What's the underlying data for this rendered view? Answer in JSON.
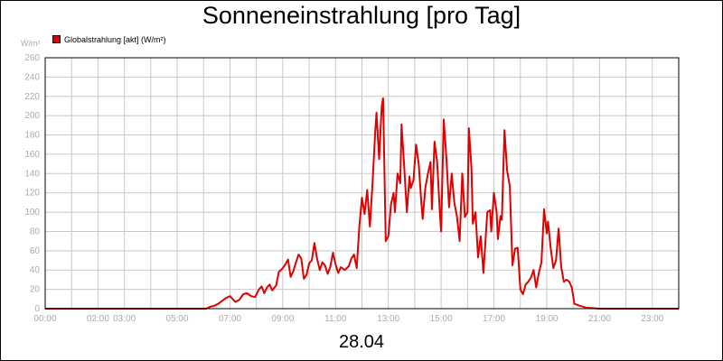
{
  "header": {
    "title": "Sonneneinstrahlung [pro Tag]",
    "unit": "W/m²"
  },
  "legend": {
    "label": "Globalstrahlung [akt] (W/m²)",
    "color": "#e00000"
  },
  "footer": {
    "date": "28.04"
  },
  "chart_data": {
    "type": "line",
    "title": "Sonneneinstrahlung [pro Tag]",
    "ylabel": "W/m²",
    "ylim": [
      0,
      260
    ],
    "xlim": [
      0,
      24
    ],
    "grid": true,
    "legend_position": "top-left",
    "y_ticks": [
      "0",
      "20",
      "40",
      "60",
      "80",
      "100",
      "120",
      "140",
      "160",
      "180",
      "200",
      "220",
      "240",
      "260"
    ],
    "x_ticks": [
      {
        "t": 0,
        "label": "00:00"
      },
      {
        "t": 2,
        "label": "02:00"
      },
      {
        "t": 3,
        "label": "03:00"
      },
      {
        "t": 5,
        "label": "05:00"
      },
      {
        "t": 7,
        "label": "07:00"
      },
      {
        "t": 9,
        "label": "09:00"
      },
      {
        "t": 11,
        "label": "11:00"
      },
      {
        "t": 13,
        "label": "13:00"
      },
      {
        "t": 15,
        "label": "15:00"
      },
      {
        "t": 17,
        "label": "17:00"
      },
      {
        "t": 19,
        "label": "19:00"
      },
      {
        "t": 21,
        "label": "21:00"
      },
      {
        "t": 23,
        "label": "23:00"
      }
    ],
    "series": [
      {
        "name": "Globalstrahlung [akt] (W/m²)",
        "color": "#e00000",
        "points": [
          [
            0.0,
            0
          ],
          [
            6.1,
            0
          ],
          [
            6.25,
            2
          ],
          [
            6.4,
            3
          ],
          [
            6.55,
            5
          ],
          [
            6.7,
            8
          ],
          [
            6.85,
            11
          ],
          [
            7.0,
            13
          ],
          [
            7.1,
            10
          ],
          [
            7.2,
            7
          ],
          [
            7.35,
            9
          ],
          [
            7.5,
            15
          ],
          [
            7.65,
            16
          ],
          [
            7.8,
            13
          ],
          [
            7.95,
            12
          ],
          [
            8.1,
            20
          ],
          [
            8.2,
            23
          ],
          [
            8.3,
            16
          ],
          [
            8.4,
            22
          ],
          [
            8.5,
            25
          ],
          [
            8.6,
            19
          ],
          [
            8.75,
            24
          ],
          [
            8.85,
            38
          ],
          [
            9.0,
            42
          ],
          [
            9.1,
            46
          ],
          [
            9.2,
            51
          ],
          [
            9.3,
            33
          ],
          [
            9.4,
            39
          ],
          [
            9.5,
            48
          ],
          [
            9.6,
            56
          ],
          [
            9.7,
            52
          ],
          [
            9.8,
            31
          ],
          [
            9.9,
            35
          ],
          [
            10.0,
            47
          ],
          [
            10.1,
            50
          ],
          [
            10.2,
            68
          ],
          [
            10.3,
            52
          ],
          [
            10.4,
            40
          ],
          [
            10.5,
            48
          ],
          [
            10.6,
            45
          ],
          [
            10.7,
            36
          ],
          [
            10.8,
            43
          ],
          [
            10.9,
            58
          ],
          [
            11.0,
            46
          ],
          [
            11.1,
            37
          ],
          [
            11.2,
            43
          ],
          [
            11.35,
            40
          ],
          [
            11.5,
            44
          ],
          [
            11.6,
            52
          ],
          [
            11.7,
            56
          ],
          [
            11.8,
            42
          ],
          [
            11.9,
            85
          ],
          [
            12.0,
            115
          ],
          [
            12.1,
            98
          ],
          [
            12.2,
            123
          ],
          [
            12.3,
            85
          ],
          [
            12.4,
            130
          ],
          [
            12.5,
            182
          ],
          [
            12.55,
            203
          ],
          [
            12.65,
            155
          ],
          [
            12.75,
            210
          ],
          [
            12.8,
            218
          ],
          [
            12.9,
            70
          ],
          [
            13.0,
            75
          ],
          [
            13.1,
            108
          ],
          [
            13.2,
            120
          ],
          [
            13.25,
            100
          ],
          [
            13.35,
            140
          ],
          [
            13.45,
            130
          ],
          [
            13.5,
            191
          ],
          [
            13.6,
            148
          ],
          [
            13.7,
            100
          ],
          [
            13.8,
            137
          ],
          [
            13.85,
            125
          ],
          [
            13.95,
            133
          ],
          [
            14.05,
            170
          ],
          [
            14.15,
            150
          ],
          [
            14.25,
            110
          ],
          [
            14.3,
            93
          ],
          [
            14.4,
            125
          ],
          [
            14.5,
            140
          ],
          [
            14.6,
            152
          ],
          [
            14.65,
            103
          ],
          [
            14.75,
            173
          ],
          [
            14.85,
            152
          ],
          [
            14.95,
            100
          ],
          [
            15.0,
            80
          ],
          [
            15.1,
            196
          ],
          [
            15.2,
            155
          ],
          [
            15.3,
            105
          ],
          [
            15.4,
            140
          ],
          [
            15.5,
            110
          ],
          [
            15.6,
            95
          ],
          [
            15.7,
            70
          ],
          [
            15.8,
            140
          ],
          [
            15.9,
            95
          ],
          [
            16.0,
            100
          ],
          [
            16.05,
            187
          ],
          [
            16.15,
            145
          ],
          [
            16.2,
            88
          ],
          [
            16.3,
            100
          ],
          [
            16.4,
            53
          ],
          [
            16.5,
            75
          ],
          [
            16.6,
            37
          ],
          [
            16.75,
            100
          ],
          [
            16.85,
            102
          ],
          [
            16.9,
            80
          ],
          [
            17.0,
            120
          ],
          [
            17.1,
            100
          ],
          [
            17.15,
            72
          ],
          [
            17.25,
            96
          ],
          [
            17.3,
            92
          ],
          [
            17.4,
            185
          ],
          [
            17.5,
            143
          ],
          [
            17.6,
            127
          ],
          [
            17.7,
            45
          ],
          [
            17.8,
            62
          ],
          [
            17.9,
            63
          ],
          [
            18.0,
            20
          ],
          [
            18.1,
            15
          ],
          [
            18.2,
            25
          ],
          [
            18.3,
            28
          ],
          [
            18.4,
            32
          ],
          [
            18.5,
            40
          ],
          [
            18.6,
            22
          ],
          [
            18.7,
            37
          ],
          [
            18.8,
            48
          ],
          [
            18.9,
            103
          ],
          [
            19.0,
            78
          ],
          [
            19.05,
            90
          ],
          [
            19.15,
            63
          ],
          [
            19.25,
            42
          ],
          [
            19.35,
            50
          ],
          [
            19.45,
            83
          ],
          [
            19.55,
            43
          ],
          [
            19.65,
            28
          ],
          [
            19.75,
            30
          ],
          [
            19.85,
            28
          ],
          [
            19.95,
            22
          ],
          [
            20.05,
            5
          ],
          [
            20.25,
            3
          ],
          [
            20.5,
            1
          ],
          [
            21.0,
            0
          ],
          [
            24.0,
            0
          ]
        ]
      }
    ]
  }
}
